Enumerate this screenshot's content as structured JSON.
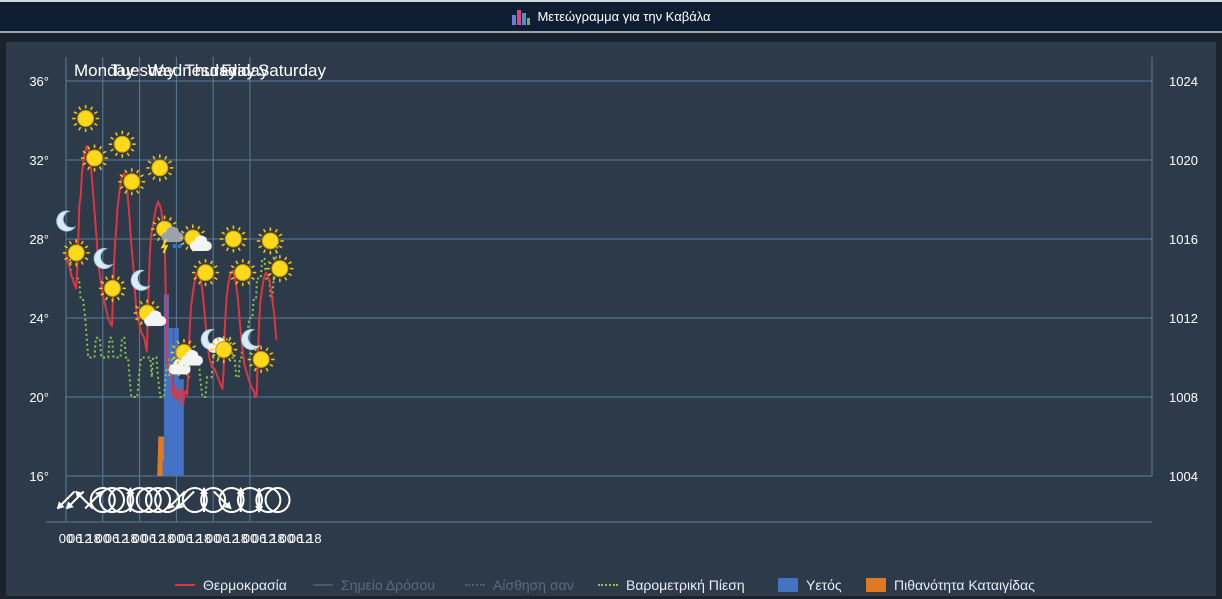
{
  "title": {
    "text": "Μετεώγραμμα για την Καβάλα",
    "icon": "bar-chart-icon"
  },
  "colors": {
    "temp": "#e0353f",
    "dew": "#4b5a5a",
    "feels": "#55606c",
    "pressure": "#8fc44a",
    "rain": "#4472c4",
    "storm": "#e07a22",
    "grid": "#5d7d9a",
    "text": "#ffffff",
    "bg": "#2c3a4a"
  },
  "days": [
    "Monday",
    "Tuesday",
    "Wednesday",
    "Thursday",
    "Friday",
    "Saturday"
  ],
  "hour_labels": [
    "00",
    "06",
    "12",
    "18",
    "00",
    "06",
    "12",
    "18",
    "00",
    "06",
    "12",
    "18",
    "00",
    "06",
    "12",
    "18",
    "00",
    "06",
    "12",
    "18",
    "00",
    "06",
    "12",
    "18",
    "00",
    "06",
    "12",
    "18"
  ],
  "wind": [
    "sw",
    "sw",
    "nw",
    "ne",
    "calm",
    "calm",
    "calm",
    "n",
    "calm",
    "calm",
    "calm",
    "calm",
    "sw",
    "sw",
    "calm",
    "n",
    "calm",
    "se",
    "calm",
    "n",
    "calm",
    "s",
    "calm",
    "calm"
  ],
  "legend": [
    {
      "label": "Θερμοκρασία",
      "kind": "line",
      "muted": false
    },
    {
      "label": "Σημείο Δρόσου",
      "kind": "line",
      "muted": true
    },
    {
      "label": "Αίσθηση σαν",
      "kind": "dotted",
      "muted": true
    },
    {
      "label": "Βαρομετρική Πίεση",
      "kind": "dotted",
      "muted": false
    },
    {
      "label": "Υετός",
      "kind": "box",
      "muted": false
    },
    {
      "label": "Πιθανότητα Καταιγίδας",
      "kind": "box",
      "muted": false
    }
  ],
  "chart_data": {
    "type": "line",
    "y_left": {
      "ticks": [
        "36°",
        "32°",
        "28°",
        "24°",
        "20°",
        "16°"
      ],
      "min": 16,
      "max": 36
    },
    "y_right": {
      "ticks": [
        "1024",
        "1020",
        "1016",
        "1012",
        "1008",
        "1004"
      ],
      "min": 1004,
      "max": 1024
    },
    "grid": true,
    "x_unit": "hours from Monday 00:00",
    "series": [
      {
        "name": "Θερμοκρασία",
        "axis": "left",
        "points": [
          [
            -0.6,
            27.3
          ],
          [
            1,
            27
          ],
          [
            3,
            26.3
          ],
          [
            5,
            25.8
          ],
          [
            6.5,
            25.5
          ],
          [
            7.4,
            26.5
          ],
          [
            8,
            28
          ],
          [
            8.7,
            29.7
          ],
          [
            9.6,
            30.2
          ],
          [
            10.4,
            31.3
          ],
          [
            12,
            32.3
          ],
          [
            13.5,
            32.7
          ],
          [
            15,
            32.4
          ],
          [
            16.5,
            31.5
          ],
          [
            18,
            30
          ],
          [
            19.5,
            28.5
          ],
          [
            20.6,
            27.3
          ],
          [
            21.5,
            26.5
          ],
          [
            23,
            25.7
          ],
          [
            24.5,
            25
          ],
          [
            26,
            24.5
          ],
          [
            27.5,
            24
          ],
          [
            29,
            23.7
          ],
          [
            30,
            23.6
          ],
          [
            30.6,
            25
          ],
          [
            31.2,
            26.5
          ],
          [
            32,
            27.8
          ],
          [
            32.8,
            28.5
          ],
          [
            33.5,
            29.5
          ],
          [
            35,
            30.5
          ],
          [
            36.5,
            31.2
          ],
          [
            38,
            31.3
          ],
          [
            39.5,
            30.8
          ],
          [
            41,
            29.5
          ],
          [
            42.5,
            27.8
          ],
          [
            44,
            26.5
          ],
          [
            45,
            25.3
          ],
          [
            46,
            24.3
          ],
          [
            47.5,
            23.8
          ],
          [
            49,
            23.3
          ],
          [
            51,
            23
          ],
          [
            52.7,
            22.3
          ],
          [
            53.4,
            24
          ],
          [
            54,
            25.8
          ],
          [
            54.7,
            27.3
          ],
          [
            55.5,
            28.2
          ],
          [
            57,
            28.8
          ],
          [
            58.5,
            29.5
          ],
          [
            60,
            29.9
          ],
          [
            61.2,
            29.7
          ],
          [
            62.3,
            29.4
          ],
          [
            63.5,
            28.4
          ],
          [
            64.6,
            27.2
          ],
          [
            65.1,
            25
          ],
          [
            65.5,
            23
          ],
          [
            66,
            21.7
          ],
          [
            67.5,
            21.3
          ],
          [
            68.5,
            21.3
          ],
          [
            70,
            20
          ],
          [
            70.6,
            20.5
          ],
          [
            71.5,
            20.4
          ],
          [
            72,
            20.2
          ],
          [
            72.8,
            19.8
          ],
          [
            74,
            20.2
          ],
          [
            75,
            20.4
          ],
          [
            75.8,
            20.2
          ],
          [
            76.4,
            19.6
          ],
          [
            77,
            20.1
          ],
          [
            78,
            20.3
          ],
          [
            79,
            20.1
          ],
          [
            79.8,
            21.3
          ],
          [
            80.4,
            23
          ],
          [
            81.5,
            24.5
          ],
          [
            83,
            25.4
          ],
          [
            84.5,
            26.1
          ],
          [
            86,
            26.3
          ],
          [
            87.5,
            26.1
          ],
          [
            89,
            25.4
          ],
          [
            90.5,
            24.2
          ],
          [
            92,
            22.9
          ],
          [
            93.5,
            22
          ],
          [
            95,
            21.6
          ],
          [
            97,
            21.4
          ],
          [
            99,
            21
          ],
          [
            100.5,
            20.7
          ],
          [
            102,
            20.4
          ],
          [
            102.8,
            21.3
          ],
          [
            103.6,
            23.5
          ],
          [
            104.7,
            25
          ],
          [
            106,
            25.8
          ],
          [
            107.5,
            26.3
          ],
          [
            109,
            26.4
          ],
          [
            110.5,
            25.9
          ],
          [
            112,
            25.1
          ],
          [
            113.5,
            23.7
          ],
          [
            115,
            22.5
          ],
          [
            116.5,
            21.6
          ],
          [
            118,
            21.2
          ],
          [
            119.5,
            20.8
          ],
          [
            121,
            20.5
          ],
          [
            122.5,
            20.3
          ],
          [
            123.5,
            20
          ],
          [
            124.3,
            20.1
          ],
          [
            125,
            21.6
          ],
          [
            125.8,
            23.5
          ],
          [
            126.6,
            24.7
          ],
          [
            127.8,
            25.4
          ],
          [
            129,
            26
          ],
          [
            130.5,
            26.3
          ],
          [
            131.5,
            26.2
          ],
          [
            133,
            25.8
          ],
          [
            134.5,
            25
          ],
          [
            135.8,
            24.2
          ],
          [
            136.8,
            23.2
          ],
          [
            137.4,
            22.9
          ]
        ]
      },
      {
        "name": "Βαρομετρική Πίεση",
        "axis": "right",
        "points": [
          [
            -0.6,
            1015
          ],
          [
            2.5,
            1015
          ],
          [
            3.5,
            1014
          ],
          [
            8.5,
            1014
          ],
          [
            9.5,
            1013
          ],
          [
            11,
            1013
          ],
          [
            12.5,
            1012
          ],
          [
            14.5,
            1010
          ],
          [
            18.5,
            1010
          ],
          [
            19.5,
            1011
          ],
          [
            22,
            1011
          ],
          [
            23,
            1010
          ],
          [
            27.5,
            1010
          ],
          [
            28.5,
            1011
          ],
          [
            30,
            1011
          ],
          [
            31,
            1010
          ],
          [
            35.5,
            1010
          ],
          [
            36.5,
            1011
          ],
          [
            38,
            1011
          ],
          [
            39,
            1010
          ],
          [
            40.5,
            1010
          ],
          [
            41.5,
            1009
          ],
          [
            42.5,
            1008
          ],
          [
            46.5,
            1008
          ],
          [
            47.5,
            1009
          ],
          [
            49,
            1010
          ],
          [
            55,
            1010
          ],
          [
            56,
            1009
          ],
          [
            56.8,
            1010
          ],
          [
            59,
            1010
          ],
          [
            60,
            1009
          ],
          [
            61.5,
            1008
          ],
          [
            64,
            1008
          ],
          [
            65,
            1009
          ],
          [
            66.5,
            1010
          ],
          [
            67.5,
            1009
          ],
          [
            69,
            1010
          ],
          [
            72.5,
            1010
          ],
          [
            73.5,
            1009
          ],
          [
            74.5,
            1010
          ],
          [
            78,
            1010
          ],
          [
            79,
            1009
          ],
          [
            80,
            1009
          ],
          [
            81,
            1010
          ],
          [
            86.5,
            1010
          ],
          [
            87.5,
            1009
          ],
          [
            89,
            1008
          ],
          [
            91,
            1008
          ],
          [
            92,
            1009
          ],
          [
            95,
            1009
          ],
          [
            96,
            1010
          ],
          [
            104,
            1010
          ],
          [
            105,
            1011
          ],
          [
            107,
            1011
          ],
          [
            108.5,
            1010
          ],
          [
            110,
            1010
          ],
          [
            111,
            1009
          ],
          [
            112.5,
            1009
          ],
          [
            113.5,
            1010
          ],
          [
            114.5,
            1010
          ],
          [
            115.5,
            1011
          ],
          [
            118,
            1011
          ],
          [
            119.5,
            1012
          ],
          [
            121.5,
            1012
          ],
          [
            122.5,
            1013
          ],
          [
            124,
            1013
          ],
          [
            124.5,
            1014
          ],
          [
            127,
            1014
          ],
          [
            128,
            1015
          ],
          [
            129.5,
            1015
          ],
          [
            130.5,
            1014
          ],
          [
            132.5,
            1014
          ],
          [
            133.5,
            1013
          ],
          [
            134.5,
            1013
          ],
          [
            135.5,
            1014
          ],
          [
            137,
            1015
          ],
          [
            138.5,
            1016
          ]
        ]
      },
      {
        "name": "Υετός",
        "type": "bar",
        "axis": "left",
        "bars": [
          [
            64.6,
            16.8
          ],
          [
            65.5,
            25.2
          ],
          [
            67,
            16.5
          ],
          [
            68.5,
            23.5
          ],
          [
            69.5,
            20
          ],
          [
            71,
            16.7
          ],
          [
            72,
            23.5
          ],
          [
            73,
            20
          ],
          [
            74.4,
            16.5
          ],
          [
            75.2,
            20.9
          ]
        ]
      },
      {
        "name": "Πιθανότητα Καταιγίδας",
        "type": "area",
        "points": [
          [
            59.5,
            16
          ],
          [
            60.3,
            18
          ],
          [
            61,
            18
          ],
          [
            64,
            18
          ],
          [
            64.6,
            16.5
          ],
          [
            65,
            18
          ],
          [
            65.4,
            16.5
          ],
          [
            66.4,
            16.5
          ],
          [
            67.3,
            18
          ],
          [
            68,
            18
          ],
          [
            68.4,
            16.5
          ],
          [
            69,
            17
          ],
          [
            70.5,
            17
          ],
          [
            71.2,
            18
          ],
          [
            71.8,
            18
          ],
          [
            72,
            16.5
          ],
          [
            72.8,
            16.5
          ],
          [
            73.5,
            18
          ],
          [
            74,
            18
          ],
          [
            74.6,
            16
          ]
        ]
      }
    ],
    "weather_icons": [
      {
        "x": 0.4,
        "y": 28.9,
        "icon": "moon"
      },
      {
        "x": 6.7,
        "y": 27.3,
        "icon": "sun"
      },
      {
        "x": 12.8,
        "y": 34.1,
        "icon": "sun"
      },
      {
        "x": 18.6,
        "y": 32.1,
        "icon": "sun"
      },
      {
        "x": 24.8,
        "y": 27,
        "icon": "moon"
      },
      {
        "x": 30.3,
        "y": 25.5,
        "icon": "sun"
      },
      {
        "x": 36.7,
        "y": 32.8,
        "icon": "sun"
      },
      {
        "x": 42.9,
        "y": 30.9,
        "icon": "sun"
      },
      {
        "x": 49,
        "y": 25.9,
        "icon": "moon"
      },
      {
        "x": 54.9,
        "y": 24.1,
        "icon": "sun-cloud"
      },
      {
        "x": 61.2,
        "y": 31.6,
        "icon": "sun"
      },
      {
        "x": 66.9,
        "y": 28.3,
        "icon": "storm"
      },
      {
        "x": 73.4,
        "y": 21.5,
        "icon": "cloud"
      },
      {
        "x": 78.9,
        "y": 22.1,
        "icon": "sun-cloud"
      },
      {
        "x": 84.7,
        "y": 27.9,
        "icon": "sun-cloud"
      },
      {
        "x": 91,
        "y": 26.3,
        "icon": "sun"
      },
      {
        "x": 96.6,
        "y": 22.8,
        "icon": "moon-cloud"
      },
      {
        "x": 102.9,
        "y": 22.4,
        "icon": "sun"
      },
      {
        "x": 109.2,
        "y": 28,
        "icon": "sun"
      },
      {
        "x": 115.3,
        "y": 26.3,
        "icon": "sun"
      },
      {
        "x": 121,
        "y": 22.9,
        "icon": "moon"
      },
      {
        "x": 127.3,
        "y": 21.9,
        "icon": "sun"
      },
      {
        "x": 133.3,
        "y": 27.9,
        "icon": "sun"
      },
      {
        "x": 139.5,
        "y": 26.5,
        "icon": "sun"
      }
    ]
  }
}
